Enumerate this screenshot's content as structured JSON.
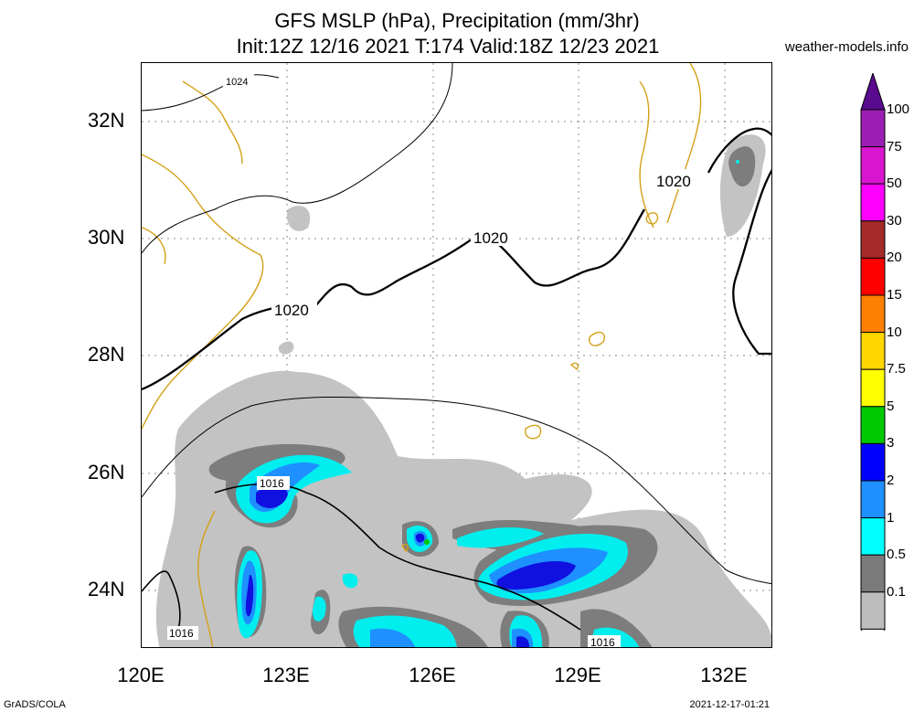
{
  "title": {
    "line1": "GFS MSLP (hPa), Precipitation (mm/3hr)",
    "line2": "Init:12Z 12/16 2021 T:174 Valid:18Z 12/23 2021"
  },
  "site": "weather-models.info",
  "footer": {
    "left": "GrADS/COLA",
    "right": "2021-12-17-01:21"
  },
  "axes": {
    "lat_labels": [
      "32N",
      "30N",
      "28N",
      "26N",
      "24N"
    ],
    "lon_labels": [
      "120E",
      "123E",
      "126E",
      "129E",
      "132E"
    ]
  },
  "isobars": {
    "label_1024": "1024",
    "label_1020_a": "1020",
    "label_1020_b": "1020",
    "label_1020_c": "1020",
    "label_1016_a": "1016",
    "label_1016_b": "1016",
    "label_1016_c": "1016"
  },
  "colorbar": {
    "levels": [
      "100",
      "75",
      "50",
      "30",
      "20",
      "15",
      "10",
      "7.5",
      "5",
      "3",
      "2",
      "1",
      "0.5",
      "0.1"
    ],
    "colors": [
      "#5a0a8c",
      "#9b1fb4",
      "#d815cf",
      "#ff00ff",
      "#a52a2a",
      "#ff0000",
      "#ff7f00",
      "#ffd700",
      "#ffff00",
      "#00c800",
      "#0000ff",
      "#1e90ff",
      "#00ffff",
      "#7a7a7a",
      "#bdbdbd",
      "#ffffff"
    ]
  },
  "colors": {
    "coast": "#d4a017",
    "precip_light": "#c3c3c3",
    "precip_mid": "#7d7d7d",
    "precip_1": "#00eeee",
    "precip_2": "#1e90ff",
    "precip_3": "#1010e0"
  }
}
